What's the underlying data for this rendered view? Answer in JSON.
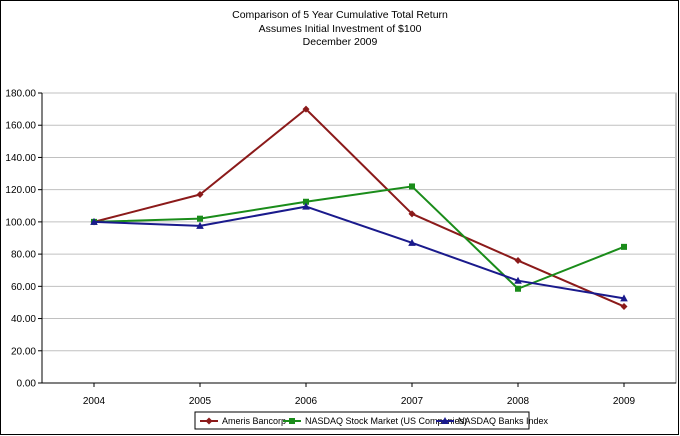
{
  "chart_data": {
    "type": "line",
    "title": "Comparison of 5 Year Cumulative Total Return",
    "subtitle_lines": [
      "Assumes Initial Investment of $100",
      "December 2009"
    ],
    "x": [
      "2004",
      "2005",
      "2006",
      "2007",
      "2008",
      "2009"
    ],
    "ylim": [
      0,
      180
    ],
    "yticks": [
      "0.00",
      "20.00",
      "40.00",
      "60.00",
      "80.00",
      "100.00",
      "120.00",
      "140.00",
      "160.00",
      "180.00"
    ],
    "grid": true,
    "legend_position": "bottom",
    "series": [
      {
        "name": "Ameris Bancorp",
        "color": "#8B1A1A",
        "marker": "diamond",
        "values": [
          100.0,
          117.0,
          170.0,
          105.0,
          76.0,
          47.5
        ]
      },
      {
        "name": "NASDAQ Stock Market (US Companies)",
        "color": "#1A8C1A",
        "marker": "square",
        "values": [
          100.0,
          102.0,
          112.5,
          122.0,
          58.5,
          84.5
        ]
      },
      {
        "name": "NASDAQ Banks Index",
        "color": "#1A1A8C",
        "marker": "triangle",
        "values": [
          100.0,
          97.5,
          109.5,
          87.0,
          63.5,
          52.5
        ]
      }
    ]
  }
}
